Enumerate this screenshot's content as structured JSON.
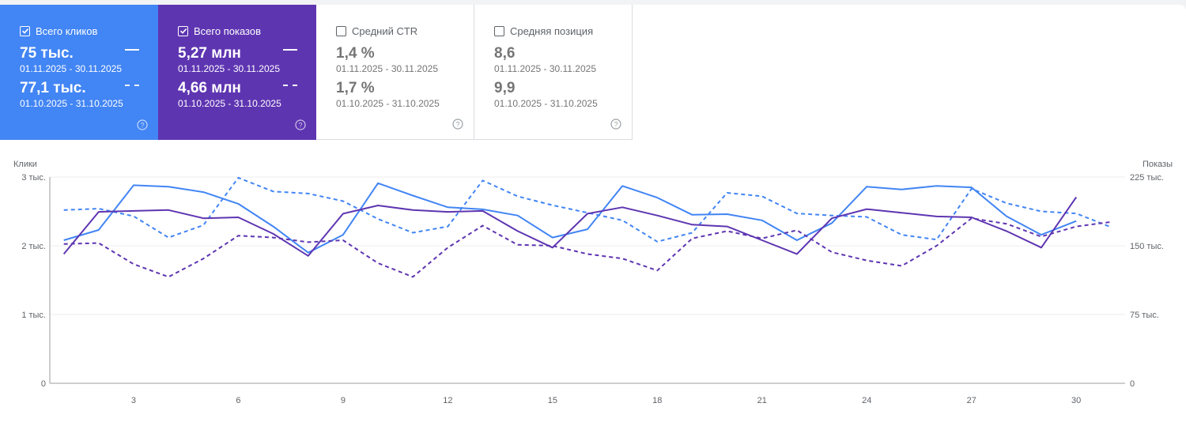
{
  "metrics": [
    {
      "label": "Всего кликов",
      "checked": true,
      "color": "#4285f4",
      "value_current": "75 тыс.",
      "range_current": "01.11.2025 - 30.11.2025",
      "value_previous": "77,1 тыс.",
      "range_previous": "01.10.2025 - 31.10.2025"
    },
    {
      "label": "Всего показов",
      "checked": true,
      "color": "#5e35b1",
      "value_current": "5,27 млн",
      "range_current": "01.11.2025 - 30.11.2025",
      "value_previous": "4,66 млн",
      "range_previous": "01.10.2025 - 31.10.2025"
    },
    {
      "label": "Средний CTR",
      "checked": false,
      "color": "#ffffff",
      "value_current": "1,4 %",
      "range_current": "01.11.2025 - 30.11.2025",
      "value_previous": "1,7 %",
      "range_previous": "01.10.2025 - 31.10.2025"
    },
    {
      "label": "Средняя позиция",
      "checked": false,
      "color": "#ffffff",
      "value_current": "8,6",
      "range_current": "01.11.2025 - 30.11.2025",
      "value_previous": "9,9",
      "range_previous": "01.10.2025 - 31.10.2025"
    }
  ],
  "chart_data": {
    "type": "line",
    "y_left_label": "Клики",
    "y_right_label": "Показы",
    "y_left_ticks": [
      "0",
      "1 тыс.",
      "2 тыс.",
      "3 тыс."
    ],
    "y_right_ticks": [
      "0",
      "75 тыс.",
      "150 тыс.",
      "225 тыс."
    ],
    "y_left_lim": [
      0,
      3000
    ],
    "y_right_lim": [
      0,
      225000
    ],
    "x": [
      1,
      2,
      3,
      4,
      5,
      6,
      7,
      8,
      9,
      10,
      11,
      12,
      13,
      14,
      15,
      16,
      17,
      18,
      19,
      20,
      21,
      22,
      23,
      24,
      25,
      26,
      27,
      28,
      29,
      30,
      31
    ],
    "x_tick_labels": [
      "3",
      "6",
      "9",
      "12",
      "15",
      "18",
      "21",
      "24",
      "27",
      "30"
    ],
    "x_tick_values": [
      3,
      6,
      9,
      12,
      15,
      18,
      21,
      24,
      27,
      30
    ],
    "grid": true,
    "series": [
      {
        "axis": "left",
        "style": "solid",
        "color": "#4285f4",
        "x": [
          1,
          2,
          3,
          4,
          5,
          6,
          7,
          8,
          9,
          10,
          11,
          12,
          13,
          14,
          15,
          16,
          17,
          18,
          19,
          20,
          21,
          22,
          23,
          24,
          25,
          26,
          27,
          28,
          29,
          30
        ],
        "values": [
          2080,
          2230,
          2880,
          2860,
          2780,
          2610,
          2280,
          1900,
          2160,
          2910,
          2730,
          2560,
          2530,
          2440,
          2120,
          2240,
          2870,
          2700,
          2450,
          2460,
          2370,
          2080,
          2330,
          2860,
          2820,
          2870,
          2850,
          2430,
          2160,
          2360
        ]
      },
      {
        "axis": "left",
        "style": "dashed",
        "color": "#4285f4",
        "x": [
          1,
          2,
          3,
          4,
          5,
          6,
          7,
          8,
          9,
          10,
          11,
          12,
          13,
          14,
          15,
          16,
          17,
          18,
          19,
          20,
          21,
          22,
          23,
          24,
          25,
          26,
          27,
          28,
          29,
          30,
          31
        ],
        "values": [
          2520,
          2540,
          2430,
          2120,
          2300,
          2990,
          2790,
          2760,
          2650,
          2390,
          2190,
          2280,
          2950,
          2720,
          2590,
          2480,
          2370,
          2060,
          2190,
          2770,
          2720,
          2470,
          2440,
          2420,
          2160,
          2090,
          2830,
          2620,
          2500,
          2470,
          2270
        ]
      },
      {
        "axis": "right",
        "style": "solid",
        "color": "#5e35b1",
        "x": [
          1,
          2,
          3,
          4,
          5,
          6,
          7,
          8,
          9,
          10,
          11,
          12,
          13,
          14,
          15,
          16,
          17,
          18,
          19,
          20,
          21,
          22,
          23,
          24,
          25,
          26,
          27,
          28,
          29,
          30
        ],
        "values": [
          141000,
          187000,
          188000,
          189000,
          180000,
          181000,
          163000,
          139000,
          185000,
          194000,
          189000,
          187000,
          188000,
          166000,
          148000,
          185000,
          192000,
          183000,
          173000,
          171000,
          156000,
          141000,
          180000,
          190000,
          186000,
          182000,
          181000,
          166000,
          148000,
          203000
        ]
      },
      {
        "axis": "right",
        "style": "dashed",
        "color": "#5e35b1",
        "x": [
          1,
          2,
          3,
          4,
          5,
          6,
          7,
          8,
          9,
          10,
          11,
          12,
          13,
          14,
          15,
          16,
          17,
          18,
          19,
          20,
          21,
          22,
          23,
          24,
          25,
          26,
          27,
          28,
          29,
          30,
          31
        ],
        "values": [
          152000,
          153000,
          130000,
          116000,
          136000,
          161000,
          159000,
          154000,
          156000,
          131000,
          116000,
          148000,
          172000,
          151000,
          150000,
          141000,
          136000,
          123000,
          158000,
          166000,
          158000,
          167000,
          143000,
          134000,
          128000,
          150000,
          180000,
          174000,
          160000,
          171000,
          176000
        ]
      }
    ]
  }
}
